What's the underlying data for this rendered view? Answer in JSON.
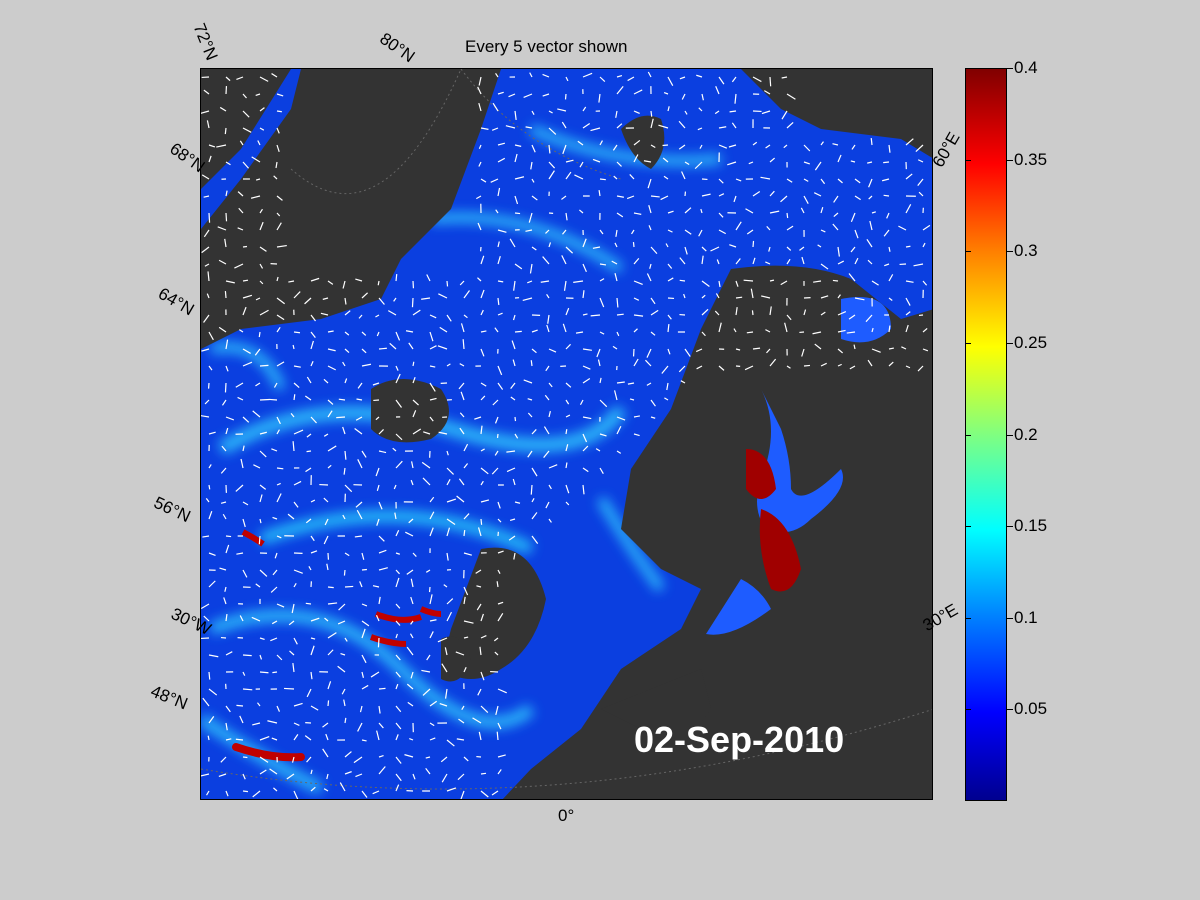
{
  "title": "Every 5 vector shown",
  "date_label": "02-Sep-2010",
  "latitude_labels": [
    "72°N",
    "68°N",
    "64°N",
    "56°N",
    "48°N"
  ],
  "other_labels": {
    "lat80": "80°N",
    "lon30w": "30°W",
    "lon0": "0°",
    "lon30e": "30°E",
    "lon60e": "60°E"
  },
  "colorbar": {
    "ticks": [
      "0.4",
      "0.35",
      "0.3",
      "0.25",
      "0.2",
      "0.15",
      "0.1",
      "0.05"
    ],
    "range": [
      0,
      0.4
    ],
    "colormap": "jet"
  },
  "colors": {
    "background": "#cccccc",
    "land": "#333333",
    "ocean_low": "#0b3fe0",
    "ocean_high": "#800000"
  }
}
